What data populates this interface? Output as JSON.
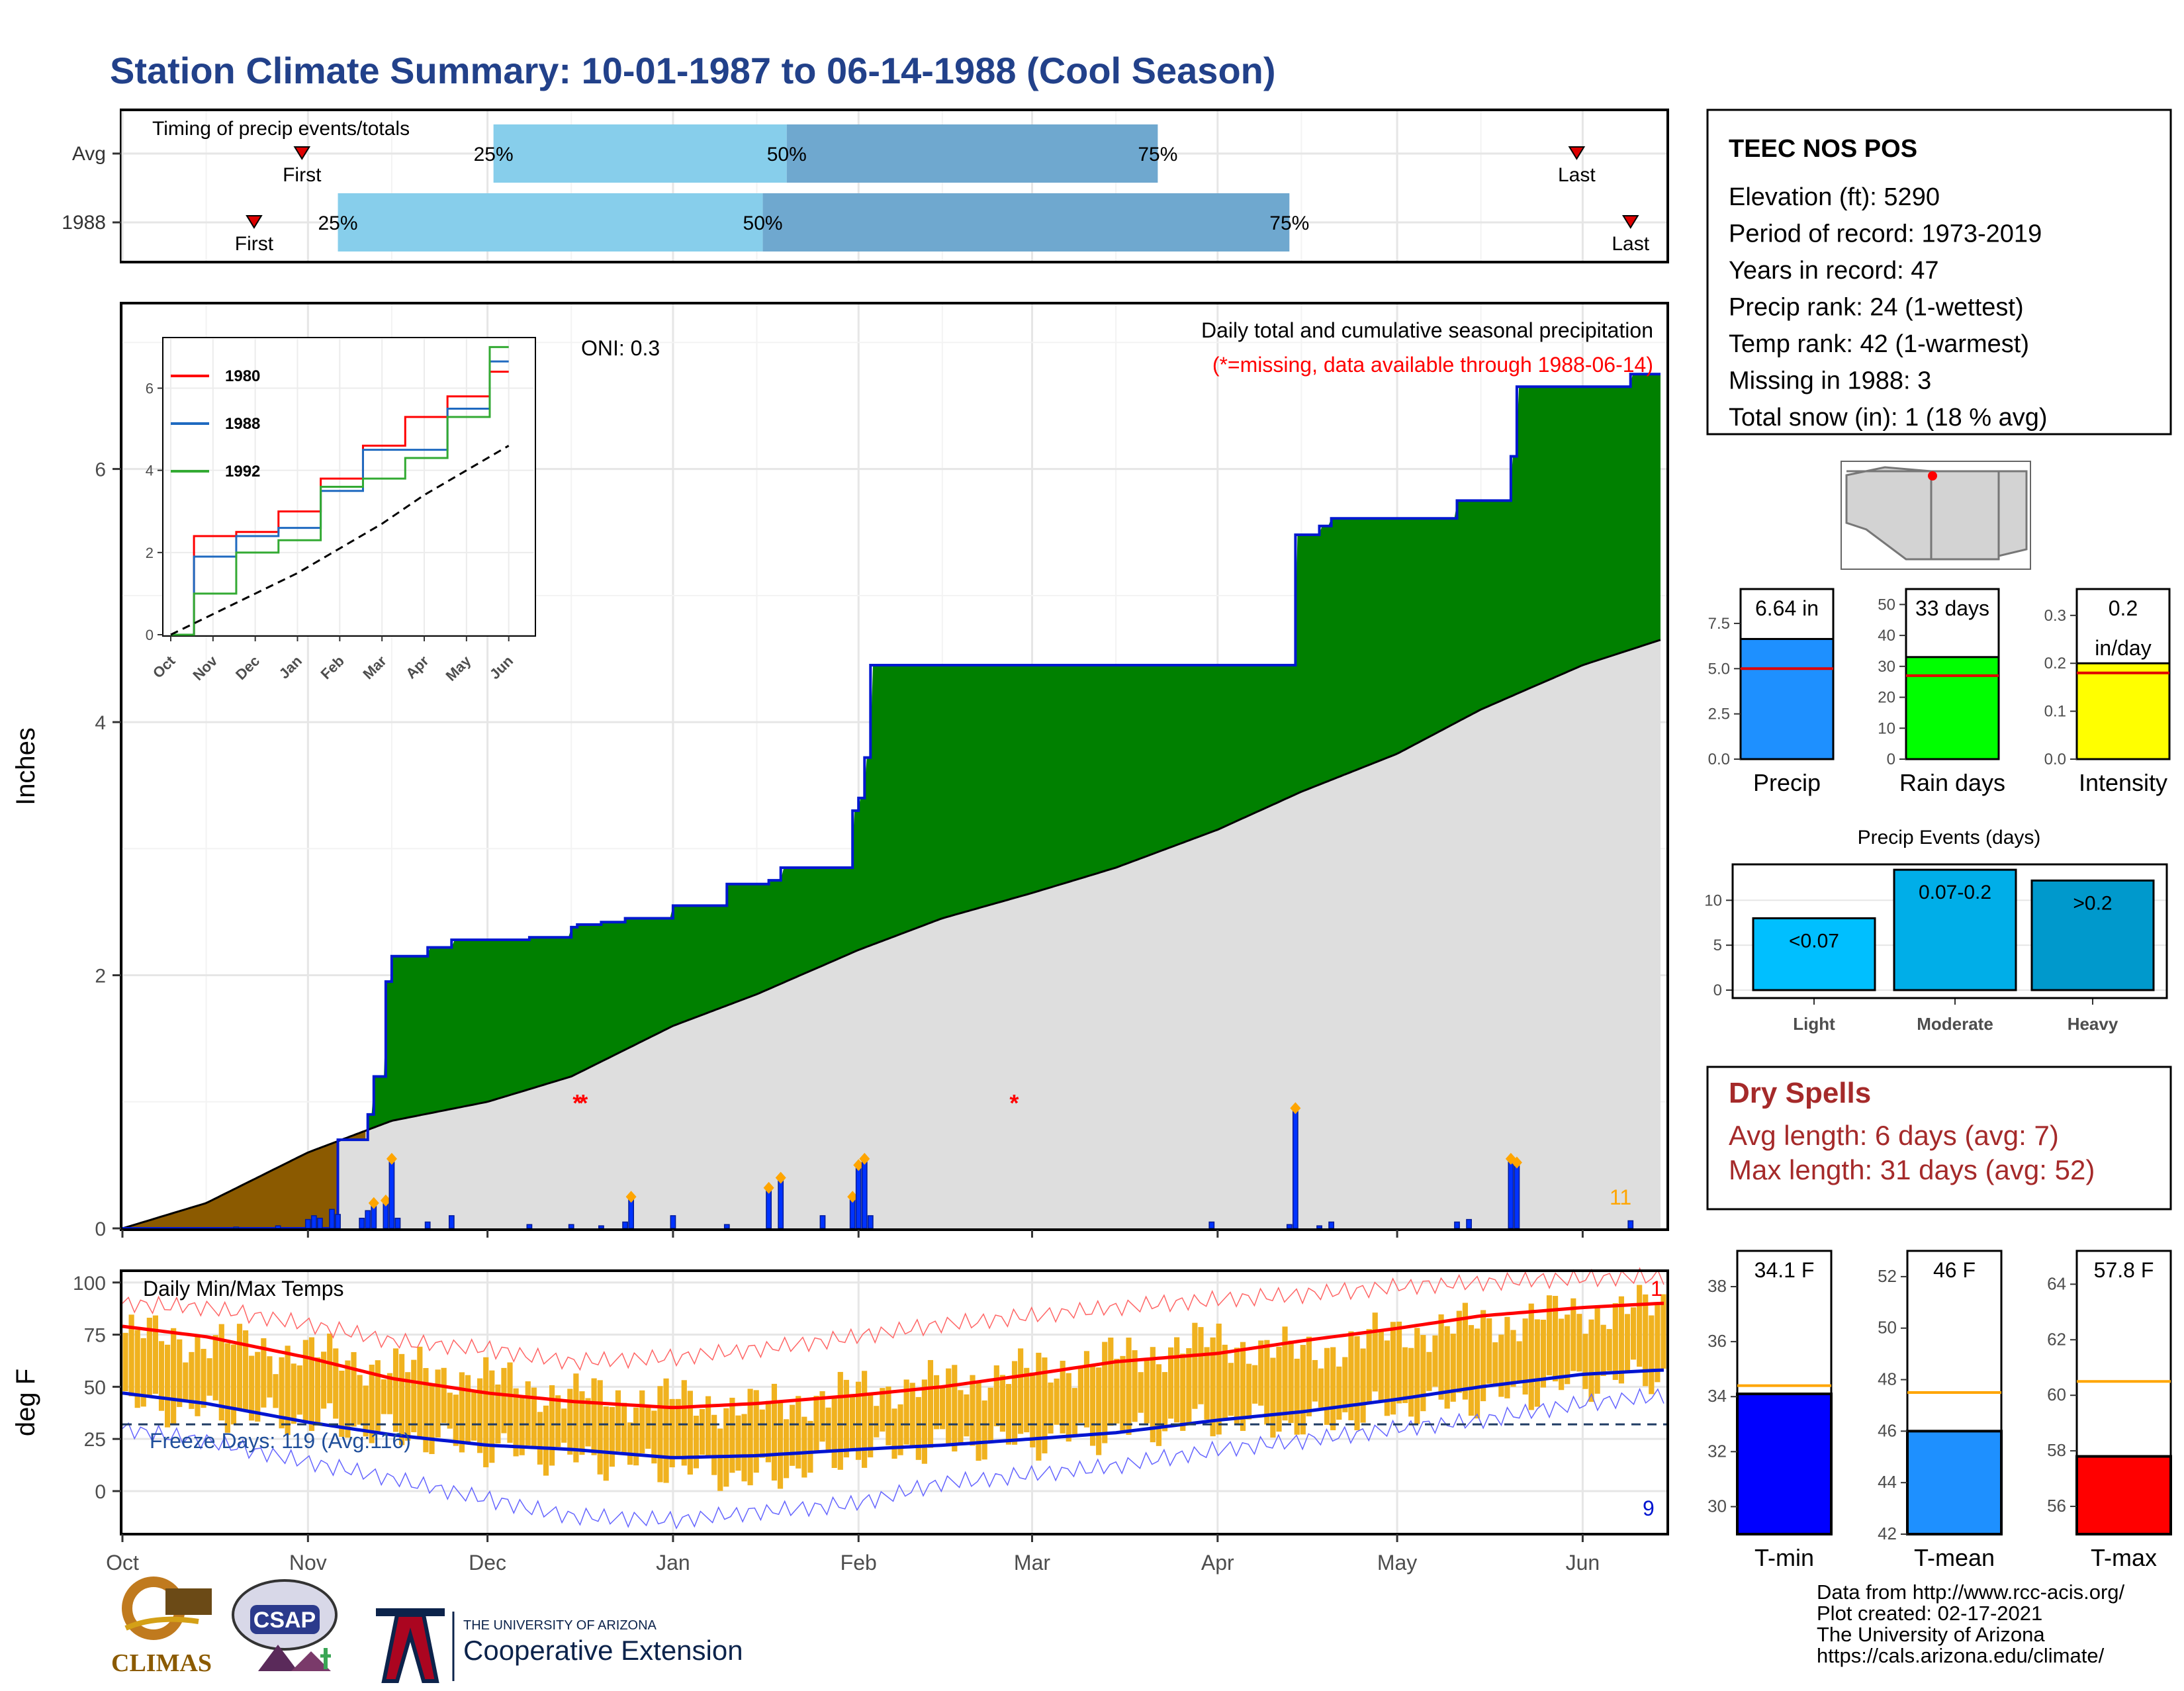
{
  "title": "Station Climate Summary: 10-01-1987 to 06-14-1988 (Cool Season)",
  "colors": {
    "title": "#22418a",
    "green": "#008000",
    "brown": "#8b5a00",
    "grey_fill": "#dedede",
    "outline_blue": "#0018d0",
    "bar_blue": "#0033ff",
    "marker_orange": "#ffa500",
    "missing_red": "#ff0000",
    "temp_bar": "#f0b21f",
    "tmax_line": "#ff0000",
    "tmin_line": "#0014d0",
    "q1": "#87ceeb",
    "q2": "#6fa8cf",
    "dry_spell": "#a52a2a"
  },
  "timing": {
    "title": "Timing of precip events/totals",
    "rows": [
      {
        "label": "Avg",
        "first_date": "1987-10-31",
        "q25_date": "1987-12-02",
        "q50_date": "1988-01-20",
        "q75_date": "1988-03-22",
        "last_date": "1988-05-31",
        "first_label": "First",
        "q25_label": "25%",
        "q50_label": "50%",
        "q75_label": "75%",
        "last_label": "Last"
      },
      {
        "label": "1988",
        "first_date": "1987-10-23",
        "q25_date": "1987-11-06",
        "q50_date": "1988-01-16",
        "q75_date": "1988-04-13",
        "last_date": "1988-06-09",
        "first_label": "First",
        "q25_label": "25%",
        "q50_label": "50%",
        "q75_label": "75%",
        "last_label": "Last"
      }
    ]
  },
  "precip_panel": {
    "ylabel": "Inches",
    "yticks": [
      0,
      2,
      4,
      6
    ],
    "ylim": [
      0,
      7.3
    ],
    "annotation": "Daily total and cumulative seasonal precipitation",
    "missing_note": "(*=missing, data available through 1988-06-14)",
    "oni": "ONI: 0.3",
    "count_label": "11"
  },
  "inset": {
    "yticks": [
      0,
      2,
      4,
      6
    ],
    "xticks": [
      "Oct",
      "Nov",
      "Dec",
      "Jan",
      "Feb",
      "Mar",
      "Apr",
      "May",
      "Jun"
    ],
    "legend": [
      {
        "name": "1980",
        "color": "#ff0000"
      },
      {
        "name": "1988",
        "color": "#1f6ac0"
      },
      {
        "name": "1992",
        "color": "#33aa33"
      }
    ]
  },
  "temp_panel": {
    "ylabel": "deg F",
    "title": "Daily Min/Max Temps",
    "yticks": [
      0,
      25,
      50,
      75,
      100
    ],
    "freeze_label": "Freeze Days: 119 (Avg:116)",
    "freeze_line": 32,
    "count_high": "1",
    "count_low": "9"
  },
  "x_months": [
    "Oct",
    "Nov",
    "Dec",
    "Jan",
    "Feb",
    "Mar",
    "Apr",
    "May",
    "Jun"
  ],
  "station": {
    "name": "TEEC NOS POS",
    "lines": [
      "Elevation (ft): 5290",
      "Period of record: 1973-2019",
      "Years in record: 47",
      "Precip rank: 24 (1-wettest)",
      "Temp rank: 42 (1-warmest)",
      "Missing in 1988: 3",
      "Total snow (in): 1 (18 % avg)"
    ]
  },
  "mini_bars": [
    {
      "label": "Precip",
      "value_label": "6.64 in",
      "value": 6.64,
      "avg": 5.0,
      "yticks": [
        "0.0",
        "2.5",
        "5.0",
        "7.5"
      ],
      "yvals": [
        0,
        2.5,
        5,
        7.5
      ],
      "ymax": 9.4,
      "color": "#1e90ff"
    },
    {
      "label": "Rain days",
      "value_label": "33 days",
      "value": 33,
      "avg": 27,
      "yticks": [
        "0",
        "10",
        "20",
        "30",
        "40",
        "50"
      ],
      "yvals": [
        0,
        10,
        20,
        30,
        40,
        50
      ],
      "ymax": 55,
      "color": "#00ff00"
    },
    {
      "label": "Intensity",
      "value_label": "0.2",
      "value_label2": "in/day",
      "value": 0.2,
      "avg": 0.18,
      "yticks": [
        "0.0",
        "0.1",
        "0.2",
        "0.3"
      ],
      "yvals": [
        0,
        0.1,
        0.2,
        0.3
      ],
      "ymax": 0.355,
      "color": "#ffff00"
    }
  ],
  "events": {
    "title": "Precip Events (days)",
    "yticks": [
      "0",
      "5",
      "10"
    ],
    "ymax": 14,
    "bars": [
      {
        "label": "Light",
        "inner": "<0.07",
        "value": 8,
        "color": "#00bfff"
      },
      {
        "label": "Moderate",
        "inner": "0.07-0.2",
        "value": 13.4,
        "color": "#00aee8"
      },
      {
        "label": "Heavy",
        "inner": ">0.2",
        "value": 12.2,
        "color": "#0099cc"
      }
    ]
  },
  "dry_spells": {
    "title": "Dry Spells",
    "avg_line": "Avg length: 6 days (avg: 7)",
    "max_line": "Max length: 31 days (avg: 52)"
  },
  "temp_bars": [
    {
      "label": "T-min",
      "value_label": "34.1 F",
      "value": 34.1,
      "avg": 34.4,
      "ymin": 29,
      "ymax": 39.3,
      "yticks": [
        "30",
        "32",
        "34",
        "36",
        "38"
      ],
      "yvals": [
        30,
        32,
        34,
        36,
        38
      ],
      "color": "#0000ff"
    },
    {
      "label": "T-mean",
      "value_label": "46 F",
      "value": 46.0,
      "avg": 47.5,
      "ymin": 42,
      "ymax": 53,
      "yticks": [
        "42",
        "44",
        "46",
        "48",
        "50",
        "52"
      ],
      "yvals": [
        42,
        44,
        46,
        48,
        50,
        52
      ],
      "color": "#1e90ff"
    },
    {
      "label": "T-max",
      "value_label": "57.8 F",
      "value": 57.8,
      "avg": 60.5,
      "ymin": 55,
      "ymax": 65.2,
      "yticks": [
        "56",
        "58",
        "60",
        "62",
        "64"
      ],
      "yvals": [
        56,
        58,
        60,
        62,
        64
      ],
      "color": "#ff0000"
    }
  ],
  "logos": {
    "climas": "CLIMAS",
    "csap": "CSAP",
    "ua_line1": "THE UNIVERSITY OF ARIZONA",
    "ua_line2": "Cooperative Extension"
  },
  "credits": [
    "Data from http://www.rcc-acis.org/",
    "Plot created: 02-17-2021",
    "The University of Arizona",
    "https://cals.arizona.edu/climate/"
  ],
  "chart_data": [
    {
      "type": "area",
      "title": "Daily total and cumulative seasonal precipitation",
      "ylabel": "Inches",
      "ylim": [
        0,
        7.3
      ],
      "x_range": [
        "1987-10-01",
        "1988-06-14"
      ],
      "series": [
        {
          "name": "1988",
          "x": [
            "1987-10-01",
            "1987-10-23",
            "1987-11-01",
            "1987-11-05",
            "1987-11-06",
            "1987-11-10",
            "1987-11-11",
            "1987-11-12",
            "1987-11-14",
            "1987-11-15",
            "1987-11-20",
            "1987-11-21",
            "1987-11-25",
            "1987-12-08",
            "1987-12-15",
            "1987-12-16",
            "1987-12-17",
            "1987-12-20",
            "1987-12-24",
            "1987-12-25",
            "1988-01-01",
            "1988-01-09",
            "1988-01-10",
            "1988-01-16",
            "1988-01-17",
            "1988-01-19",
            "1988-01-26",
            "1988-01-31",
            "1988-02-01",
            "1988-02-02",
            "1988-02-03",
            "1988-03-31",
            "1988-04-13",
            "1988-04-14",
            "1988-04-18",
            "1988-04-20",
            "1988-05-11",
            "1988-05-13",
            "1988-05-18",
            "1988-05-20",
            "1988-05-21",
            "1988-06-09",
            "1988-06-14"
          ],
          "y": [
            0.0,
            0.0,
            0.0,
            0.0,
            0.7,
            0.7,
            0.9,
            1.2,
            1.95,
            2.15,
            2.15,
            2.22,
            2.28,
            2.3,
            2.38,
            2.4,
            2.4,
            2.42,
            2.45,
            2.45,
            2.55,
            2.55,
            2.72,
            2.72,
            2.75,
            2.85,
            2.85,
            3.3,
            3.4,
            3.72,
            4.45,
            4.45,
            4.45,
            5.48,
            5.55,
            5.61,
            5.75,
            5.75,
            5.75,
            6.1,
            6.65,
            6.75,
            6.75
          ]
        },
        {
          "name": "Average (cumulative)",
          "x": [
            "1987-10-01",
            "1987-10-15",
            "1987-11-01",
            "1987-11-15",
            "1987-12-01",
            "1987-12-15",
            "1988-01-01",
            "1988-01-15",
            "1988-02-01",
            "1988-02-15",
            "1988-03-01",
            "1988-03-15",
            "1988-04-01",
            "1988-04-15",
            "1988-05-01",
            "1988-05-15",
            "1988-06-01",
            "1988-06-14"
          ],
          "y": [
            0.0,
            0.2,
            0.6,
            0.85,
            1.0,
            1.2,
            1.6,
            1.85,
            2.2,
            2.45,
            2.65,
            2.85,
            3.15,
            3.45,
            3.75,
            4.1,
            4.45,
            4.65
          ]
        },
        {
          "name": "Daily precip",
          "x": [
            "1987-10-20",
            "1987-10-27",
            "1987-11-01",
            "1987-11-02",
            "1987-11-03",
            "1987-11-05",
            "1987-11-06",
            "1987-11-10",
            "1987-11-11",
            "1987-11-12",
            "1987-11-14",
            "1987-11-15",
            "1987-11-16",
            "1987-11-21",
            "1987-11-25",
            "1987-12-08",
            "1987-12-15",
            "1987-12-20",
            "1987-12-24",
            "1987-12-25",
            "1988-01-01",
            "1988-01-10",
            "1988-01-17",
            "1988-01-19",
            "1988-01-26",
            "1988-01-31",
            "1988-02-01",
            "1988-02-02",
            "1988-02-03",
            "1988-03-31",
            "1988-04-13",
            "1988-04-14",
            "1988-04-18",
            "1988-04-20",
            "1988-05-11",
            "1988-05-13",
            "1988-05-20",
            "1988-05-21",
            "1988-06-09"
          ],
          "y": [
            0.01,
            0.02,
            0.07,
            0.1,
            0.08,
            0.15,
            0.11,
            0.08,
            0.14,
            0.2,
            0.22,
            0.55,
            0.08,
            0.05,
            0.1,
            0.03,
            0.03,
            0.02,
            0.05,
            0.25,
            0.1,
            0.03,
            0.32,
            0.4,
            0.1,
            0.25,
            0.5,
            0.55,
            0.1,
            0.05,
            0.03,
            0.95,
            0.02,
            0.05,
            0.05,
            0.07,
            0.55,
            0.52,
            0.06
          ]
        },
        {
          "name": "Missing (*)",
          "x": [
            "1987-12-16",
            "1987-12-17",
            "1988-02-27"
          ],
          "y": [
            1.0,
            1.0,
            1.0
          ]
        }
      ]
    },
    {
      "type": "line",
      "title": "",
      "x": [
        "Oct",
        "Nov",
        "Dec",
        "Jan",
        "Feb",
        "Mar",
        "Apr",
        "May",
        "Jun"
      ],
      "ylim": [
        0,
        7.2
      ],
      "series": [
        {
          "name": "1980",
          "values": [
            0.0,
            2.4,
            2.5,
            3.0,
            3.8,
            4.6,
            5.3,
            5.8,
            6.4
          ]
        },
        {
          "name": "1988",
          "values": [
            0.0,
            1.9,
            2.4,
            2.6,
            3.5,
            4.5,
            4.5,
            5.5,
            6.65
          ]
        },
        {
          "name": "1992",
          "values": [
            0.0,
            1.0,
            2.0,
            2.3,
            3.6,
            3.8,
            4.3,
            5.3,
            7.0
          ]
        },
        {
          "name": "Average",
          "values": [
            0.0,
            0.5,
            1.0,
            1.5,
            2.1,
            2.7,
            3.4,
            4.0,
            4.6
          ]
        }
      ]
    },
    {
      "type": "bar",
      "title": "Daily Min/Max Temps",
      "ylabel": "deg F",
      "ylim": [
        -20,
        105
      ],
      "x": [
        "1987-10-01",
        "1987-10-15",
        "1987-11-01",
        "1987-11-15",
        "1987-12-01",
        "1987-12-15",
        "1988-01-01",
        "1988-01-15",
        "1988-02-01",
        "1988-02-15",
        "1988-03-01",
        "1988-03-15",
        "1988-04-01",
        "1988-04-15",
        "1988-05-01",
        "1988-05-15",
        "1988-06-01",
        "1988-06-14"
      ],
      "series": [
        {
          "name": "Daily max",
          "values": [
            76,
            72,
            66,
            60,
            54,
            46,
            44,
            40,
            48,
            52,
            58,
            64,
            72,
            66,
            76,
            80,
            86,
            88
          ]
        },
        {
          "name": "Daily min",
          "values": [
            42,
            38,
            34,
            28,
            20,
            16,
            12,
            6,
            18,
            22,
            24,
            28,
            34,
            32,
            40,
            44,
            52,
            56
          ]
        },
        {
          "name": "Avg max",
          "values": [
            79,
            74,
            64,
            54,
            47,
            43,
            40,
            42,
            46,
            50,
            56,
            62,
            66,
            72,
            78,
            84,
            88,
            90
          ]
        },
        {
          "name": "Avg min",
          "values": [
            47,
            42,
            33,
            27,
            22,
            20,
            16,
            17,
            20,
            22,
            25,
            28,
            34,
            38,
            44,
            50,
            56,
            58
          ]
        },
        {
          "name": "Record high",
          "values": [
            90,
            88,
            80,
            72,
            68,
            62,
            64,
            68,
            74,
            80,
            84,
            88,
            92,
            94,
            98,
            100,
            102,
            103
          ]
        },
        {
          "name": "Record low",
          "values": [
            30,
            24,
            14,
            6,
            -4,
            -12,
            -14,
            -10,
            -6,
            4,
            8,
            12,
            20,
            24,
            30,
            34,
            42,
            46
          ]
        }
      ]
    },
    {
      "type": "bar",
      "title": "Precip Events (days)",
      "categories": [
        "Light",
        "Moderate",
        "Heavy"
      ],
      "values": [
        8,
        13.4,
        12.2
      ]
    }
  ]
}
